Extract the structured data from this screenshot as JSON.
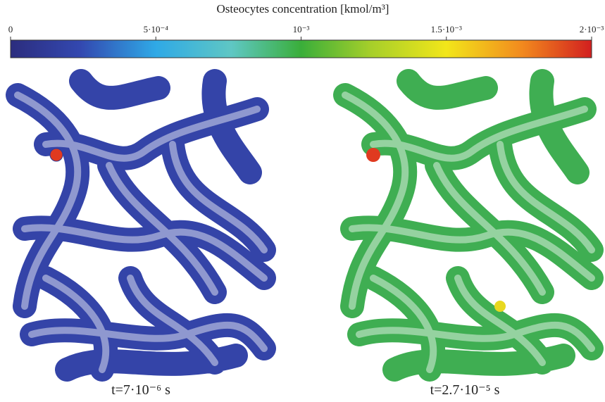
{
  "colorbar": {
    "title": "Osteocytes concentration [kmol/m³]",
    "lim": [
      0,
      0.002
    ],
    "ticks": [
      {
        "value": 0,
        "label": "0"
      },
      {
        "value": 0.0005,
        "label": "5·10⁻⁴"
      },
      {
        "value": 0.001,
        "label": "10⁻³"
      },
      {
        "value": 0.0015,
        "label": "1.5·10⁻³"
      },
      {
        "value": 0.002,
        "label": "2·10⁻³"
      }
    ]
  },
  "panels": [
    {
      "caption": "t=7·10⁻⁶ s"
    },
    {
      "caption": "t=2.7·10⁻⁵ s"
    }
  ]
}
